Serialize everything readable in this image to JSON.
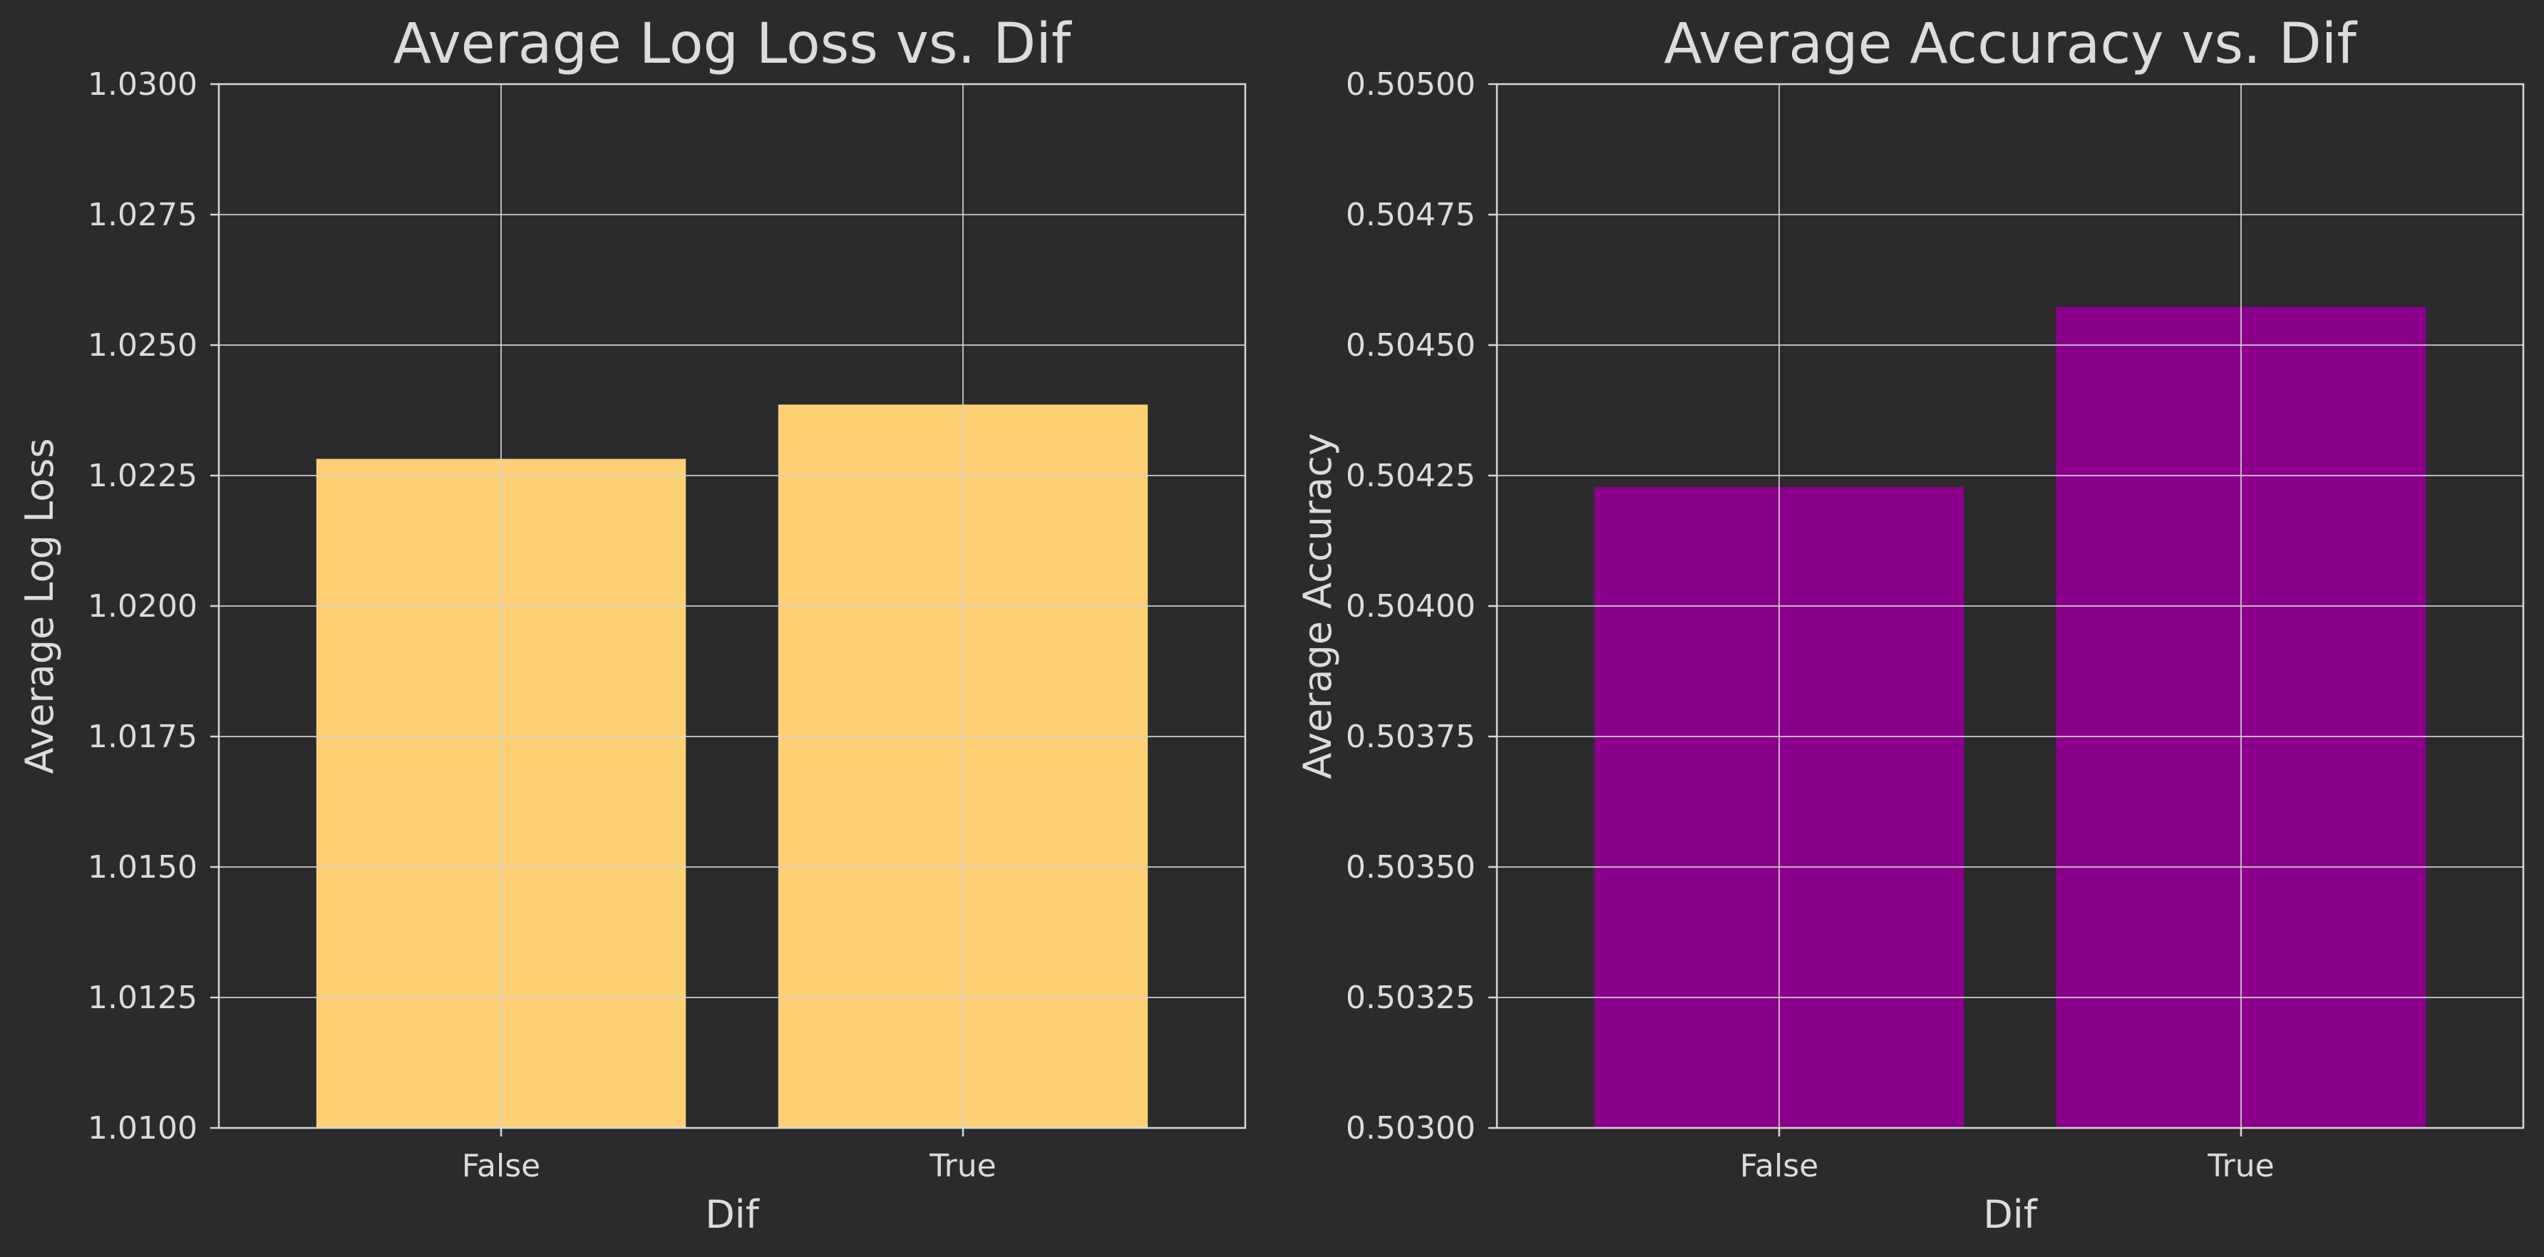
{
  "colors": {
    "background": "#2b2b2e",
    "text": "#dcdcdc",
    "grid": "#d2d2d2"
  },
  "chart_data": [
    {
      "type": "bar",
      "title": "Average Log Loss vs. Dif",
      "xlabel": "Dif",
      "ylabel": "Average Log Loss",
      "categories": [
        "False",
        "True"
      ],
      "values": [
        1.02282,
        1.02386
      ],
      "ylim": [
        1.01,
        1.03
      ],
      "yticks": [
        "1.0100",
        "1.0125",
        "1.0150",
        "1.0175",
        "1.0200",
        "1.0225",
        "1.0250",
        "1.0275",
        "1.0300"
      ],
      "bar_color": "#ffd174",
      "grid": true,
      "legend": "none"
    },
    {
      "type": "bar",
      "title": "Average Accuracy vs. Dif",
      "xlabel": "Dif",
      "ylabel": "Average Accuracy",
      "categories": [
        "False",
        "True"
      ],
      "values": [
        0.504228,
        0.504573
      ],
      "ylim": [
        0.503,
        0.505
      ],
      "yticks": [
        "0.50300",
        "0.50325",
        "0.50350",
        "0.50375",
        "0.50400",
        "0.50425",
        "0.50450",
        "0.50475",
        "0.50500"
      ],
      "bar_color": "#8b008b",
      "grid": true,
      "legend": "none"
    }
  ]
}
